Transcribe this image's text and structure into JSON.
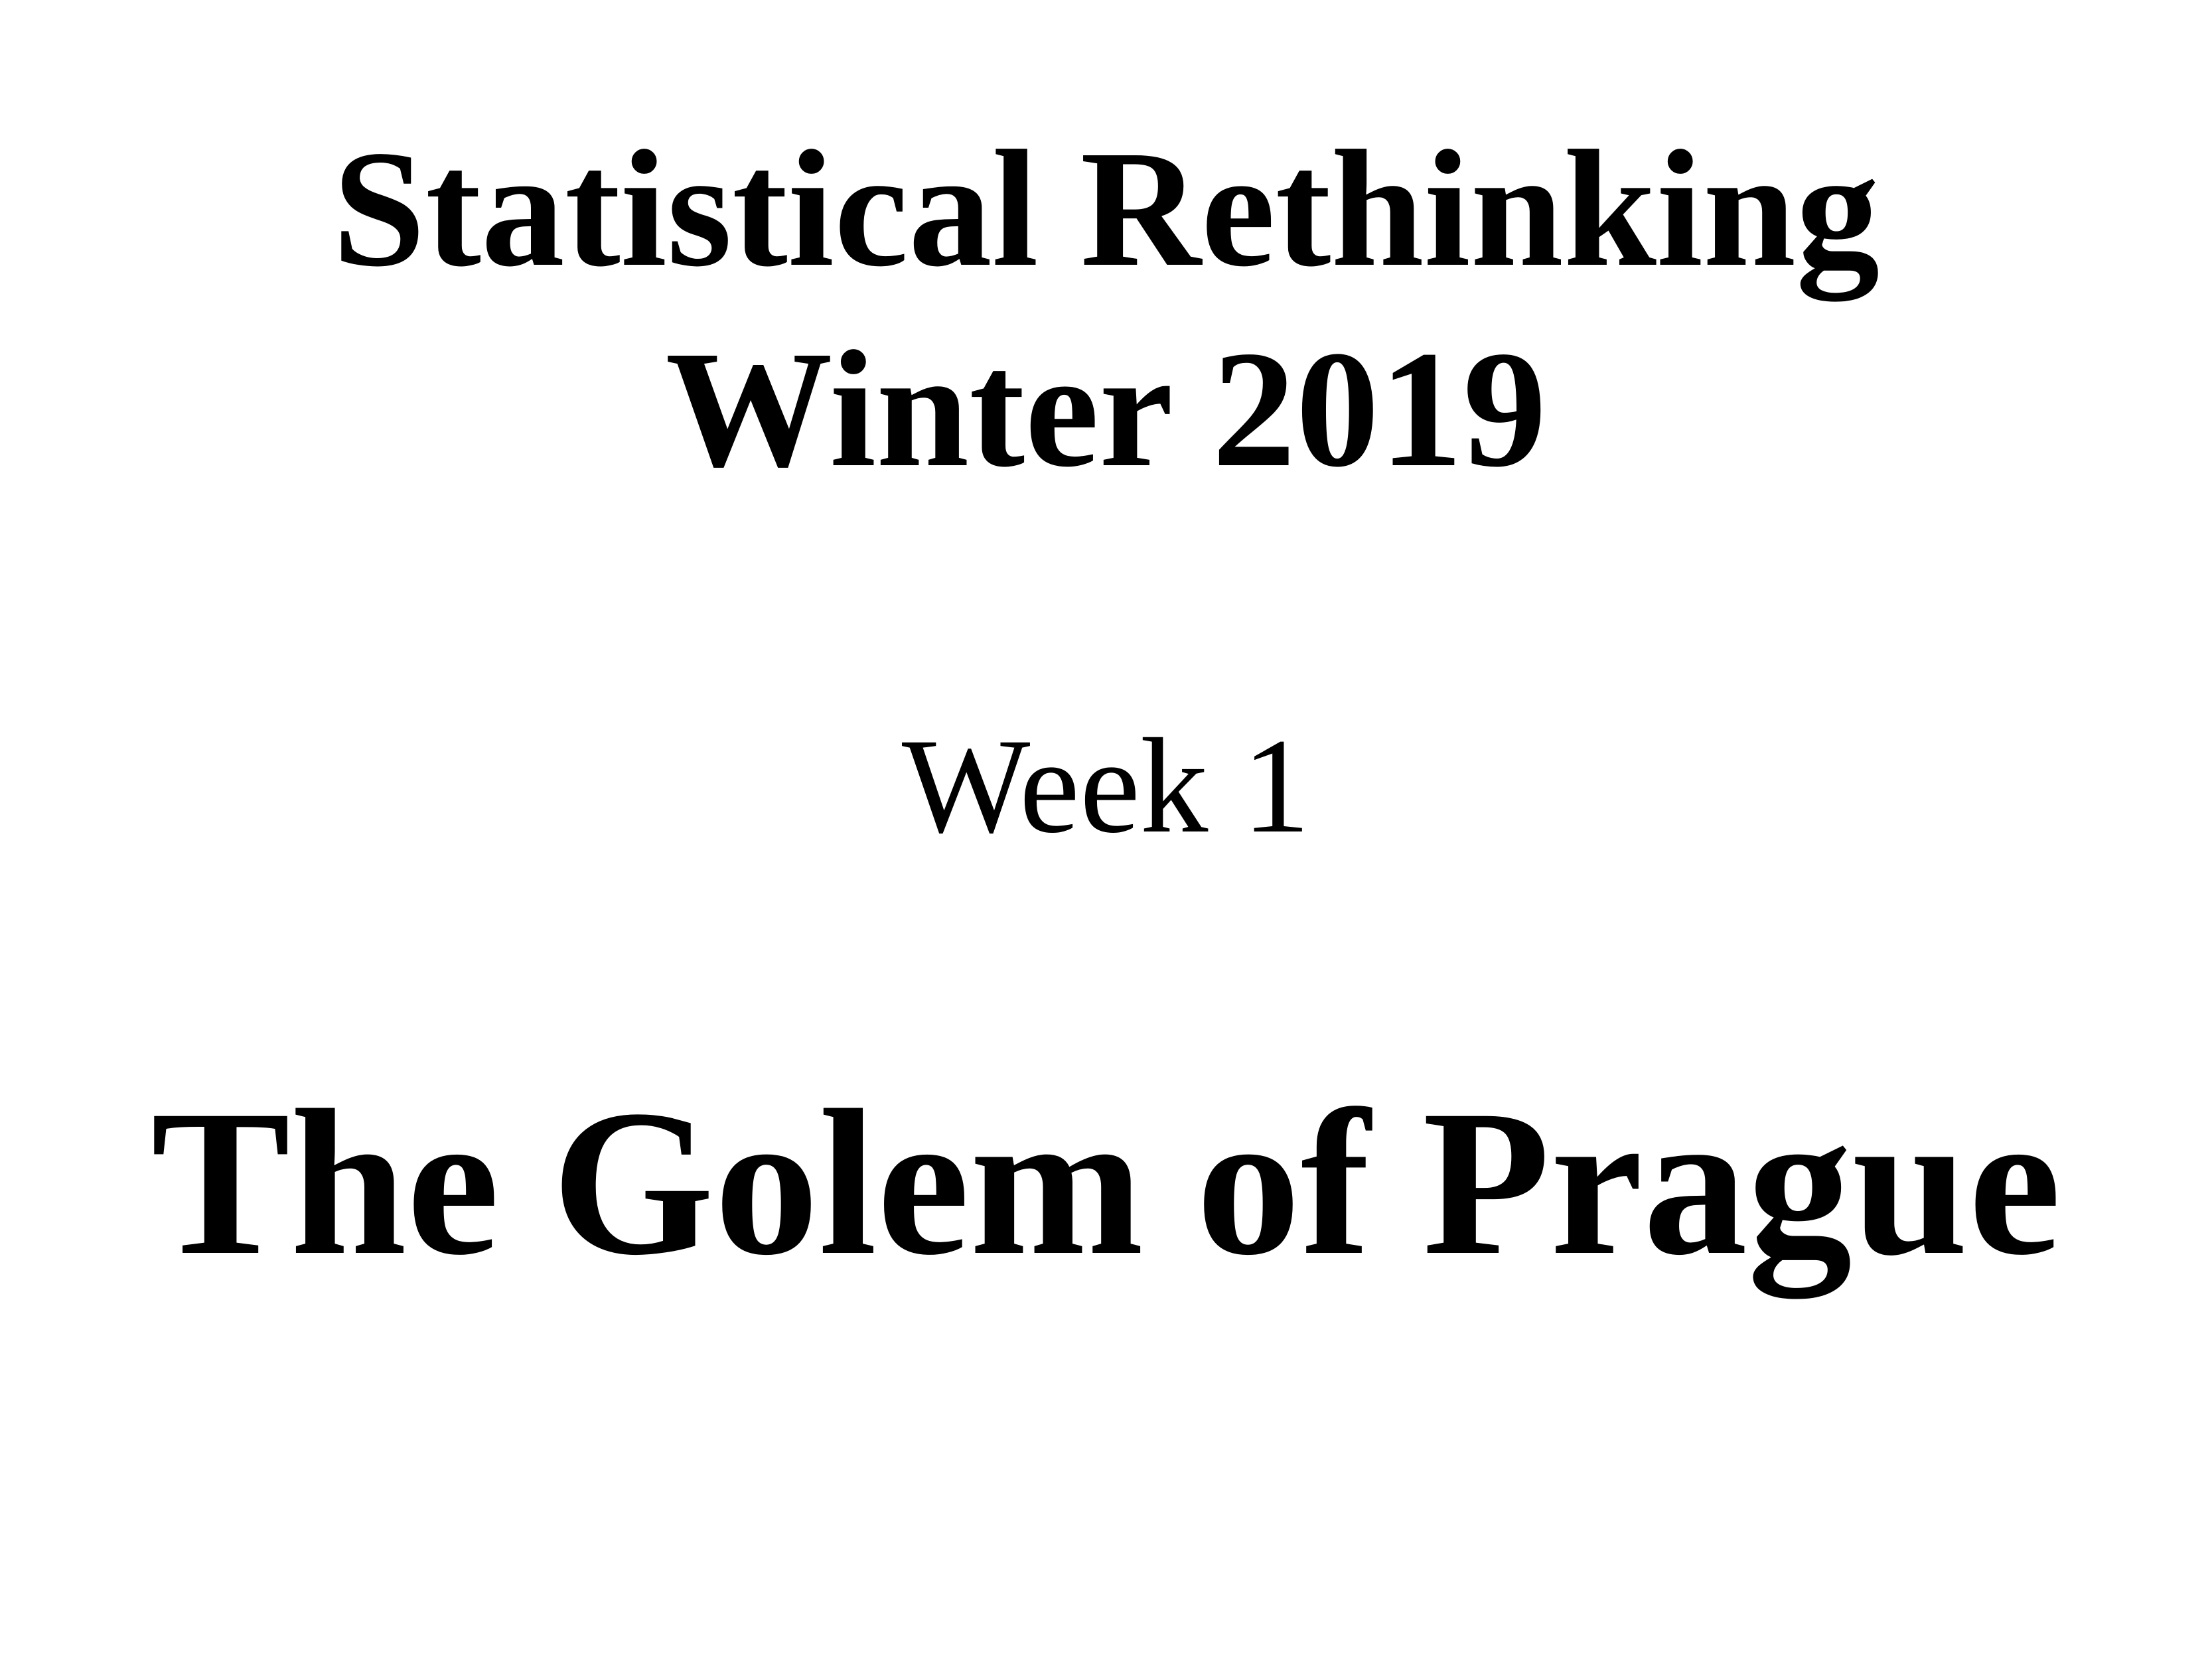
{
  "slide": {
    "title_line_1": "Statistical Rethinking",
    "title_line_2": "Winter 2019",
    "week": "Week 1",
    "lecture_title": "The Golem of Prague"
  }
}
